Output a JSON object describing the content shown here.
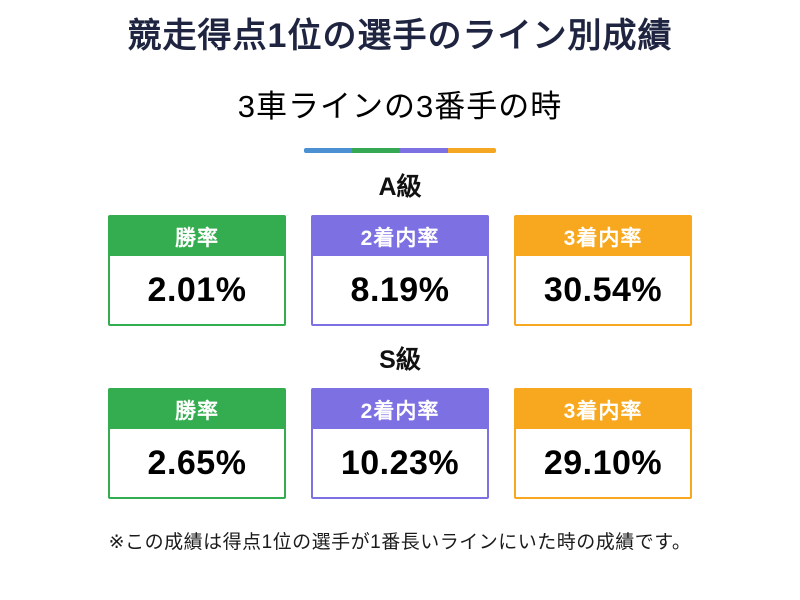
{
  "title": "競走得点1位の選手のライン別成績",
  "subtitle": "3車ラインの3番手の時",
  "divider_colors": [
    "#4a90d2",
    "#34a853",
    "#7d70e3",
    "#f5a623"
  ],
  "colors": {
    "win_rate": "#33ad4f",
    "top2_rate": "#7d70e3",
    "top3_rate": "#f7a81e"
  },
  "sections": [
    {
      "label": "A級",
      "cards": [
        {
          "header": "勝率",
          "value": "2.01%",
          "color": "#33ad4f"
        },
        {
          "header": "2着内率",
          "value": "8.19%",
          "color": "#7d70e3"
        },
        {
          "header": "3着内率",
          "value": "30.54%",
          "color": "#f7a81e"
        }
      ]
    },
    {
      "label": "S級",
      "cards": [
        {
          "header": "勝率",
          "value": "2.65%",
          "color": "#33ad4f"
        },
        {
          "header": "2着内率",
          "value": "10.23%",
          "color": "#7d70e3"
        },
        {
          "header": "3着内率",
          "value": "29.10%",
          "color": "#f7a81e"
        }
      ]
    }
  ],
  "footnote": "※この成績は得点1位の選手が1番長いラインにいた時の成績です。",
  "chart_data": {
    "type": "table",
    "title": "競走得点1位の選手のライン別成績",
    "subtitle": "3車ラインの3番手の時",
    "columns": [
      "勝率",
      "2着内率",
      "3着内率"
    ],
    "rows": [
      {
        "label": "A級",
        "values": [
          2.01,
          8.19,
          30.54
        ]
      },
      {
        "label": "S級",
        "values": [
          2.65,
          10.23,
          29.1
        ]
      }
    ],
    "unit": "%"
  }
}
